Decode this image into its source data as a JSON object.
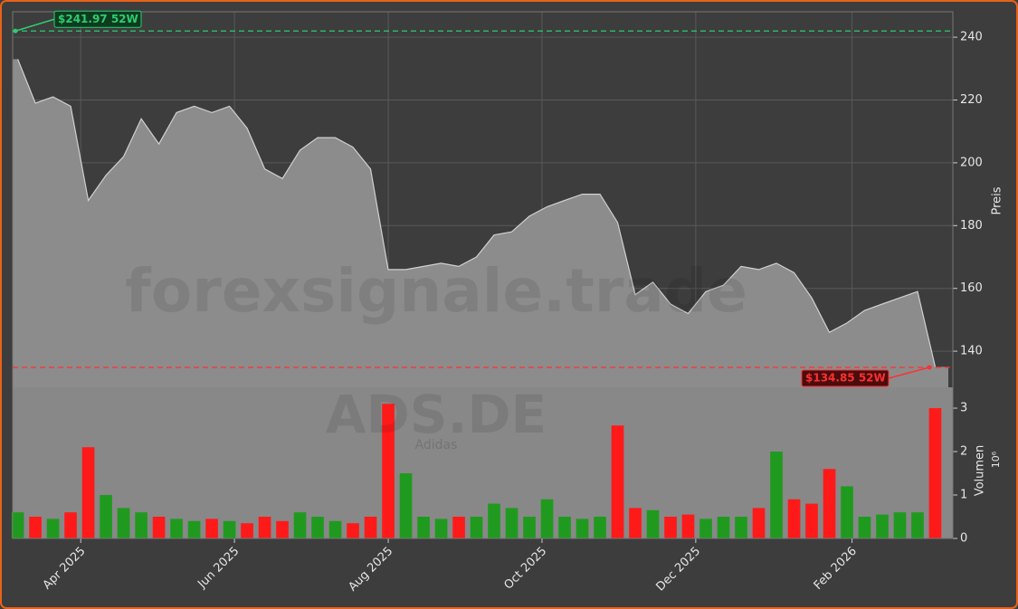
{
  "chart_data": [
    {
      "type": "area",
      "y_label": "Preis",
      "x": [
        "2025-03-07",
        "2025-03-14",
        "2025-03-21",
        "2025-03-28",
        "2025-04-04",
        "2025-04-11",
        "2025-04-18",
        "2025-04-25",
        "2025-05-02",
        "2025-05-09",
        "2025-05-16",
        "2025-05-23",
        "2025-05-30",
        "2025-06-06",
        "2025-06-13",
        "2025-06-20",
        "2025-06-27",
        "2025-07-04",
        "2025-07-11",
        "2025-07-18",
        "2025-07-25",
        "2025-08-01",
        "2025-08-08",
        "2025-08-15",
        "2025-08-22",
        "2025-08-29",
        "2025-09-05",
        "2025-09-12",
        "2025-09-19",
        "2025-09-26",
        "2025-10-03",
        "2025-10-10",
        "2025-10-17",
        "2025-10-24",
        "2025-10-31",
        "2025-11-07",
        "2025-11-14",
        "2025-11-21",
        "2025-11-28",
        "2025-12-05",
        "2025-12-12",
        "2025-12-19",
        "2025-12-26",
        "2026-01-02",
        "2026-01-09",
        "2026-01-16",
        "2026-01-23",
        "2026-01-30",
        "2026-02-06",
        "2026-02-13",
        "2026-02-20",
        "2026-02-27",
        "2026-03-06"
      ],
      "series": [
        {
          "color": "#8c8c8c",
          "values": [
            233,
            219,
            221,
            218,
            188,
            196,
            202,
            214,
            206,
            216,
            218,
            216,
            218,
            211,
            198,
            195,
            204,
            208,
            208,
            205,
            198,
            166,
            166,
            167,
            168,
            167,
            170,
            177,
            178,
            183,
            186,
            188,
            190,
            190,
            181,
            158,
            162,
            155,
            152,
            159,
            161,
            167,
            166,
            168,
            165,
            157,
            146,
            149,
            153,
            155,
            157,
            159,
            135
          ]
        }
      ],
      "xlim": [
        "2025-03-05",
        "2026-03-13"
      ],
      "ylim": [
        128.5,
        248.1
      ],
      "yticks": [
        140,
        160,
        180,
        200,
        220,
        240
      ],
      "grid": true,
      "reference_lines": [
        {
          "value": 241.97,
          "label": "$241.97 52W",
          "color": "#2ecc71"
        },
        {
          "value": 134.85,
          "label": "$134.85 52W",
          "color": "#ff3030"
        }
      ],
      "watermark": "forexsignale.trade",
      "symbol": "ADS.DE",
      "name": "Adidas"
    },
    {
      "type": "bar",
      "y_label": "Volumen",
      "y_multiplier": "10⁶",
      "x": [
        "2025-03-07",
        "2025-03-14",
        "2025-03-21",
        "2025-03-28",
        "2025-04-04",
        "2025-04-11",
        "2025-04-18",
        "2025-04-25",
        "2025-05-02",
        "2025-05-09",
        "2025-05-16",
        "2025-05-23",
        "2025-05-30",
        "2025-06-06",
        "2025-06-13",
        "2025-06-20",
        "2025-06-27",
        "2025-07-04",
        "2025-07-11",
        "2025-07-18",
        "2025-07-25",
        "2025-08-01",
        "2025-08-08",
        "2025-08-15",
        "2025-08-22",
        "2025-08-29",
        "2025-09-05",
        "2025-09-12",
        "2025-09-19",
        "2025-09-26",
        "2025-10-03",
        "2025-10-10",
        "2025-10-17",
        "2025-10-24",
        "2025-10-31",
        "2025-11-07",
        "2025-11-14",
        "2025-11-21",
        "2025-11-28",
        "2025-12-05",
        "2025-12-12",
        "2025-12-19",
        "2025-12-26",
        "2026-01-02",
        "2026-01-09",
        "2026-01-16",
        "2026-01-23",
        "2026-01-30",
        "2026-02-06",
        "2026-02-13",
        "2026-02-20",
        "2026-02-27",
        "2026-03-06"
      ],
      "values": [
        0.6,
        0.5,
        0.45,
        0.6,
        2.1,
        1.0,
        0.7,
        0.6,
        0.5,
        0.45,
        0.4,
        0.45,
        0.4,
        0.35,
        0.5,
        0.4,
        0.6,
        0.5,
        0.4,
        0.35,
        0.5,
        3.1,
        1.5,
        0.5,
        0.45,
        0.5,
        0.5,
        0.8,
        0.7,
        0.5,
        0.9,
        0.5,
        0.45,
        0.5,
        2.6,
        0.7,
        0.65,
        0.5,
        0.55,
        0.45,
        0.5,
        0.5,
        0.7,
        2.0,
        0.9,
        0.8,
        1.6,
        1.2,
        0.5,
        0.55,
        0.6,
        0.6,
        3.0
      ],
      "colors": {
        "up": "#1f9a1f",
        "down": "#ff1a1a"
      },
      "xlim": [
        "2025-03-05",
        "2026-03-13"
      ],
      "xticks": [
        {
          "value": "2025-04-01",
          "label": "Apr 2025"
        },
        {
          "value": "2025-06-01",
          "label": "Jun 2025"
        },
        {
          "value": "2025-08-01",
          "label": "Aug 2025"
        },
        {
          "value": "2025-10-01",
          "label": "Oct 2025"
        },
        {
          "value": "2025-12-01",
          "label": "Dec 2025"
        },
        {
          "value": "2026-02-01",
          "label": "Feb 2026"
        }
      ],
      "ylim": [
        0,
        3.48
      ],
      "yticks": [
        0,
        1,
        2,
        3
      ]
    }
  ]
}
